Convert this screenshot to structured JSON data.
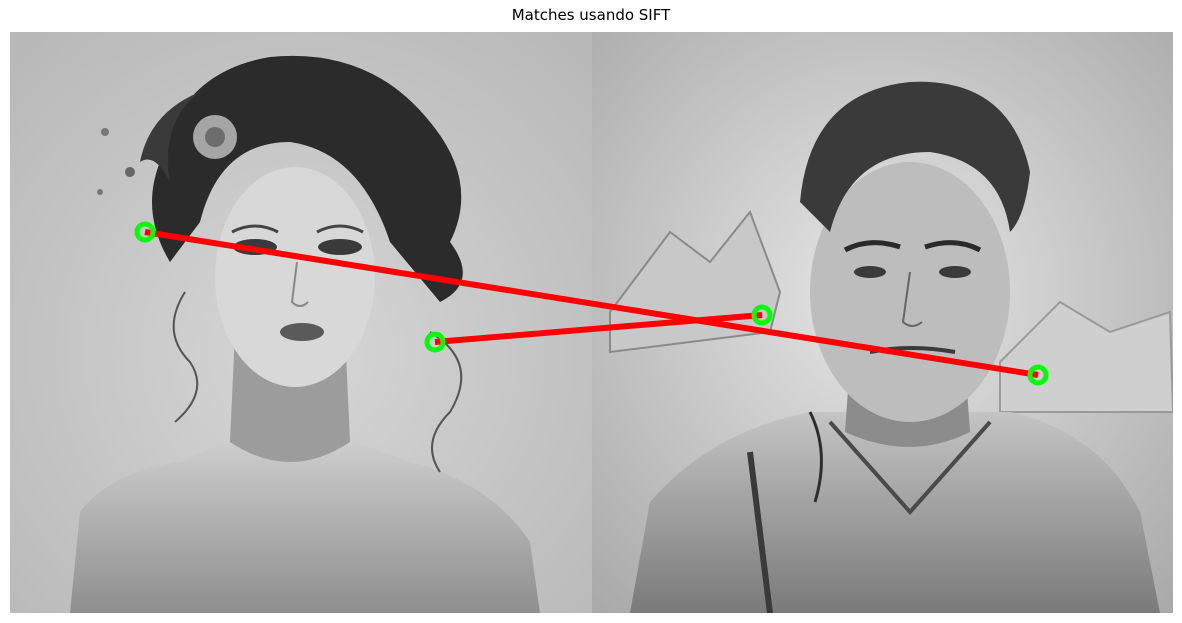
{
  "figure": {
    "title": "Matches usando SIFT"
  },
  "images": {
    "left": {
      "subject": "grayscale illustration of a woman with dark curly hair and a flower"
    },
    "right": {
      "subject": "grayscale sketch-style portrait of a man with wavy hair and a jacket, mountains behind"
    }
  },
  "matches": {
    "count": 2,
    "keypoint_color": "#00ff00",
    "line_color": "#ff0000"
  },
  "colors": {
    "background": "#ffffff",
    "left_bg": "#c9c9c9",
    "right_bg": "#d6d6d6"
  }
}
